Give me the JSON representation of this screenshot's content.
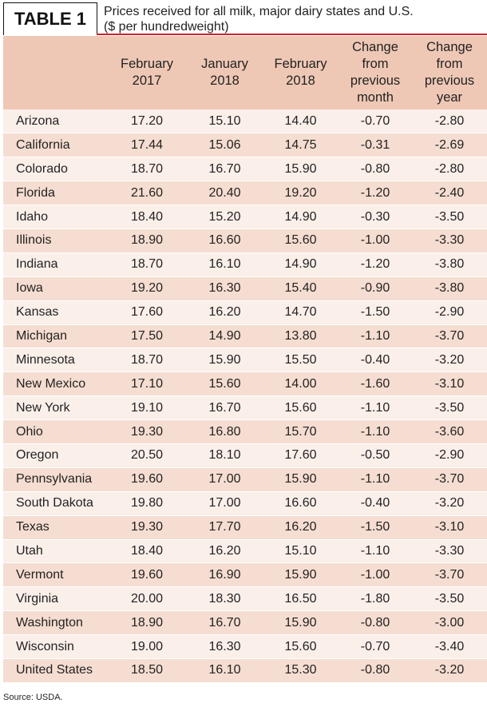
{
  "tag": "TABLE 1",
  "title_line1": "Prices received for all milk, major dairy states and U.S.",
  "title_line2": "($ per hundredweight)",
  "columns": [
    "",
    "February 2017",
    "January 2018",
    "February 2018",
    "Change from previous month",
    "Change from previous year"
  ],
  "rows": [
    [
      "Arizona",
      "17.20",
      "15.10",
      "14.40",
      "-0.70",
      "-2.80"
    ],
    [
      "California",
      "17.44",
      "15.06",
      "14.75",
      "-0.31",
      "-2.69"
    ],
    [
      "Colorado",
      "18.70",
      "16.70",
      "15.90",
      "-0.80",
      "-2.80"
    ],
    [
      "Florida",
      "21.60",
      "20.40",
      "19.20",
      "-1.20",
      "-2.40"
    ],
    [
      "Idaho",
      "18.40",
      "15.20",
      "14.90",
      "-0.30",
      "-3.50"
    ],
    [
      "Illinois",
      "18.90",
      "16.60",
      "15.60",
      "-1.00",
      "-3.30"
    ],
    [
      "Indiana",
      "18.70",
      "16.10",
      "14.90",
      "-1.20",
      "-3.80"
    ],
    [
      "Iowa",
      "19.20",
      "16.30",
      "15.40",
      "-0.90",
      "-3.80"
    ],
    [
      "Kansas",
      "17.60",
      "16.20",
      "14.70",
      "-1.50",
      "-2.90"
    ],
    [
      "Michigan",
      "17.50",
      "14.90",
      "13.80",
      "-1.10",
      "-3.70"
    ],
    [
      "Minnesota",
      "18.70",
      "15.90",
      "15.50",
      "-0.40",
      "-3.20"
    ],
    [
      "New Mexico",
      "17.10",
      "15.60",
      "14.00",
      "-1.60",
      "-3.10"
    ],
    [
      "New York",
      "19.10",
      "16.70",
      "15.60",
      "-1.10",
      "-3.50"
    ],
    [
      "Ohio",
      "19.30",
      "16.80",
      "15.70",
      "-1.10",
      "-3.60"
    ],
    [
      "Oregon",
      "20.50",
      "18.10",
      "17.60",
      "-0.50",
      "-2.90"
    ],
    [
      "Pennsylvania",
      "19.60",
      "17.00",
      "15.90",
      "-1.10",
      "-3.70"
    ],
    [
      "South Dakota",
      "19.80",
      "17.00",
      "16.60",
      "-0.40",
      "-3.20"
    ],
    [
      "Texas",
      "19.30",
      "17.70",
      "16.20",
      "-1.50",
      "-3.10"
    ],
    [
      "Utah",
      "18.40",
      "16.20",
      "15.10",
      "-1.10",
      "-3.30"
    ],
    [
      "Vermont",
      "19.60",
      "16.90",
      "15.90",
      "-1.00",
      "-3.70"
    ],
    [
      "Virginia",
      "20.00",
      "18.30",
      "16.50",
      "-1.80",
      "-3.50"
    ],
    [
      "Washington",
      "18.90",
      "16.70",
      "15.90",
      "-0.80",
      "-3.00"
    ],
    [
      "Wisconsin",
      "19.00",
      "16.30",
      "15.60",
      "-0.70",
      "-3.40"
    ],
    [
      "United States",
      "18.50",
      "16.10",
      "15.30",
      "-0.80",
      "-3.20"
    ]
  ],
  "source": "Source: USDA.",
  "colors": {
    "header_bg": "#efc8b5",
    "row_light": "#fbefea",
    "row_dark": "#f6ddd1",
    "accent_rule": "#cc2222"
  }
}
